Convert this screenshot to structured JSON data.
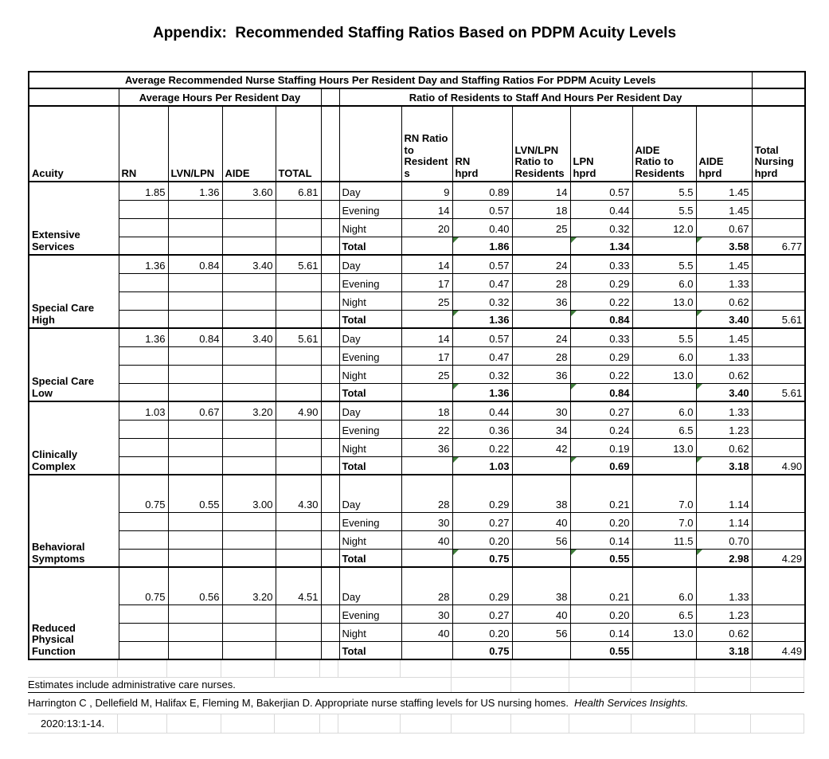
{
  "page_title": "Appendix:  Recommended Staffing Ratios Based on PDPM Acuity Levels",
  "table": {
    "main_header": "Average Recommended Nurse Staffing Hours Per Resident Day and Staffing Ratios For PDPM Acuity Levels",
    "left_group_header": "Average Hours Per Resident Day",
    "right_group_header": "Ratio of Residents to Staff And Hours Per Resident Day",
    "columns": {
      "acuity": "Acuity",
      "rn": "RN",
      "lvn_lpn": "LVN/LPN",
      "aide": "AIDE",
      "total": "TOTAL",
      "rn_ratio": "RN Ratio\nto\nResident\ns",
      "rn_hprd": "RN\nhprd",
      "lvn_ratio": "LVN/LPN\nRatio to\nResidents",
      "lpn_hprd": "LPN\nhprd",
      "aide_ratio": "AIDE\nRatio to\nResidents",
      "aide_hprd": "AIDE\nhprd",
      "total_nursing_hprd": "Total\nNursing\nhprd"
    },
    "blocks": [
      {
        "acuity": "Extensive\nServices",
        "tall_first_row": false,
        "avg_hours": {
          "rn": "1.85",
          "lvn_lpn": "1.36",
          "aide": "3.60",
          "total": "6.81"
        },
        "shifts": [
          {
            "label": "Day",
            "rn_ratio": "9",
            "rn_hprd": "0.89",
            "lvn_ratio": "14",
            "lpn_hprd": "0.57",
            "aide_ratio": "5.5",
            "aide_hprd": "1.45"
          },
          {
            "label": "Evening",
            "rn_ratio": "14",
            "rn_hprd": "0.57",
            "lvn_ratio": "18",
            "lpn_hprd": "0.44",
            "aide_ratio": "5.5",
            "aide_hprd": "1.45"
          },
          {
            "label": "Night",
            "rn_ratio": "20",
            "rn_hprd": "0.40",
            "lvn_ratio": "25",
            "lpn_hprd": "0.32",
            "aide_ratio": "12.0",
            "aide_hprd": "0.67"
          }
        ],
        "total_row": {
          "label": "Total",
          "rn_hprd": "1.86",
          "lpn_hprd": "1.34",
          "aide_hprd": "3.58",
          "total_nursing_hprd": "6.77",
          "flags": true
        }
      },
      {
        "acuity": "Special Care\nHigh",
        "tall_first_row": false,
        "avg_hours": {
          "rn": "1.36",
          "lvn_lpn": "0.84",
          "aide": "3.40",
          "total": "5.61"
        },
        "shifts": [
          {
            "label": "Day",
            "rn_ratio": "14",
            "rn_hprd": "0.57",
            "lvn_ratio": "24",
            "lpn_hprd": "0.33",
            "aide_ratio": "5.5",
            "aide_hprd": "1.45"
          },
          {
            "label": "Evening",
            "rn_ratio": "17",
            "rn_hprd": "0.47",
            "lvn_ratio": "28",
            "lpn_hprd": "0.29",
            "aide_ratio": "6.0",
            "aide_hprd": "1.33"
          },
          {
            "label": "Night",
            "rn_ratio": "25",
            "rn_hprd": "0.32",
            "lvn_ratio": "36",
            "lpn_hprd": "0.22",
            "aide_ratio": "13.0",
            "aide_hprd": "0.62"
          }
        ],
        "total_row": {
          "label": "Total",
          "rn_hprd": "1.36",
          "lpn_hprd": "0.84",
          "aide_hprd": "3.40",
          "total_nursing_hprd": "5.61",
          "flags": true
        }
      },
      {
        "acuity": "Special Care\nLow",
        "tall_first_row": false,
        "avg_hours": {
          "rn": "1.36",
          "lvn_lpn": "0.84",
          "aide": "3.40",
          "total": "5.61"
        },
        "shifts": [
          {
            "label": "Day",
            "rn_ratio": "14",
            "rn_hprd": "0.57",
            "lvn_ratio": "24",
            "lpn_hprd": "0.33",
            "aide_ratio": "5.5",
            "aide_hprd": "1.45"
          },
          {
            "label": "Evening",
            "rn_ratio": "17",
            "rn_hprd": "0.47",
            "lvn_ratio": "28",
            "lpn_hprd": "0.29",
            "aide_ratio": "6.0",
            "aide_hprd": "1.33"
          },
          {
            "label": "Night",
            "rn_ratio": "25",
            "rn_hprd": "0.32",
            "lvn_ratio": "36",
            "lpn_hprd": "0.22",
            "aide_ratio": "13.0",
            "aide_hprd": "0.62"
          }
        ],
        "total_row": {
          "label": "Total",
          "rn_hprd": "1.36",
          "lpn_hprd": "0.84",
          "aide_hprd": "3.40",
          "total_nursing_hprd": "5.61",
          "flags": true
        }
      },
      {
        "acuity": "Clinically\nComplex",
        "tall_first_row": false,
        "avg_hours": {
          "rn": "1.03",
          "lvn_lpn": "0.67",
          "aide": "3.20",
          "total": "4.90"
        },
        "shifts": [
          {
            "label": "Day",
            "rn_ratio": "18",
            "rn_hprd": "0.44",
            "lvn_ratio": "30",
            "lpn_hprd": "0.27",
            "aide_ratio": "6.0",
            "aide_hprd": "1.33"
          },
          {
            "label": "Evening",
            "rn_ratio": "22",
            "rn_hprd": "0.36",
            "lvn_ratio": "34",
            "lpn_hprd": "0.24",
            "aide_ratio": "6.5",
            "aide_hprd": "1.23"
          },
          {
            "label": "Night",
            "rn_ratio": "36",
            "rn_hprd": "0.22",
            "lvn_ratio": "42",
            "lpn_hprd": "0.19",
            "aide_ratio": "13.0",
            "aide_hprd": "0.62"
          }
        ],
        "total_row": {
          "label": "Total",
          "rn_hprd": "1.03",
          "lpn_hprd": "0.69",
          "aide_hprd": "3.18",
          "total_nursing_hprd": "4.90",
          "flags": true
        }
      },
      {
        "acuity": "Behavioral\nSymptoms",
        "tall_first_row": true,
        "avg_hours": {
          "rn": "0.75",
          "lvn_lpn": "0.55",
          "aide": "3.00",
          "total": "4.30"
        },
        "shifts": [
          {
            "label": "Day",
            "rn_ratio": "28",
            "rn_hprd": "0.29",
            "lvn_ratio": "38",
            "lpn_hprd": "0.21",
            "aide_ratio": "7.0",
            "aide_hprd": "1.14"
          },
          {
            "label": "Evening",
            "rn_ratio": "30",
            "rn_hprd": "0.27",
            "lvn_ratio": "40",
            "lpn_hprd": "0.20",
            "aide_ratio": "7.0",
            "aide_hprd": "1.14"
          },
          {
            "label": "Night",
            "rn_ratio": "40",
            "rn_hprd": "0.20",
            "lvn_ratio": "56",
            "lpn_hprd": "0.14",
            "aide_ratio": "11.5",
            "aide_hprd": "0.70"
          }
        ],
        "total_row": {
          "label": "Total",
          "rn_hprd": "0.75",
          "lpn_hprd": "0.55",
          "aide_hprd": "2.98",
          "total_nursing_hprd": "4.29",
          "flags": true
        }
      },
      {
        "acuity": "Reduced\nPhysical\nFunction",
        "tall_first_row": true,
        "avg_hours": {
          "rn": "0.75",
          "lvn_lpn": "0.56",
          "aide": "3.20",
          "total": "4.51"
        },
        "shifts": [
          {
            "label": "Day",
            "rn_ratio": "28",
            "rn_hprd": "0.29",
            "lvn_ratio": "38",
            "lpn_hprd": "0.21",
            "aide_ratio": "6.0",
            "aide_hprd": "1.33"
          },
          {
            "label": "Evening",
            "rn_ratio": "30",
            "rn_hprd": "0.27",
            "lvn_ratio": "40",
            "lpn_hprd": "0.20",
            "aide_ratio": "6.5",
            "aide_hprd": "1.23"
          },
          {
            "label": "Night",
            "rn_ratio": "40",
            "rn_hprd": "0.20",
            "lvn_ratio": "56",
            "lpn_hprd": "0.14",
            "aide_ratio": "13.0",
            "aide_hprd": "0.62"
          }
        ],
        "total_row": {
          "label": "Total",
          "rn_hprd": "0.75",
          "lpn_hprd": "0.55",
          "aide_hprd": "3.18",
          "total_nursing_hprd": "4.49",
          "flags": false
        }
      }
    ]
  },
  "footnotes": {
    "note1": "Estimates include administrative care nurses.",
    "citation_regular": "Harrington C , Dellefield M, Halifax E, Fleming M, Bakerjian D. Appropriate nurse staffing levels for US nursing homes.  ",
    "citation_italic": "Health Services Insights.",
    "citation_line2": "2020:13:1-14."
  },
  "colors": {
    "flag_green": "#3f7d3b",
    "grid_light": "#d9d9d9",
    "border_black": "#000000"
  }
}
